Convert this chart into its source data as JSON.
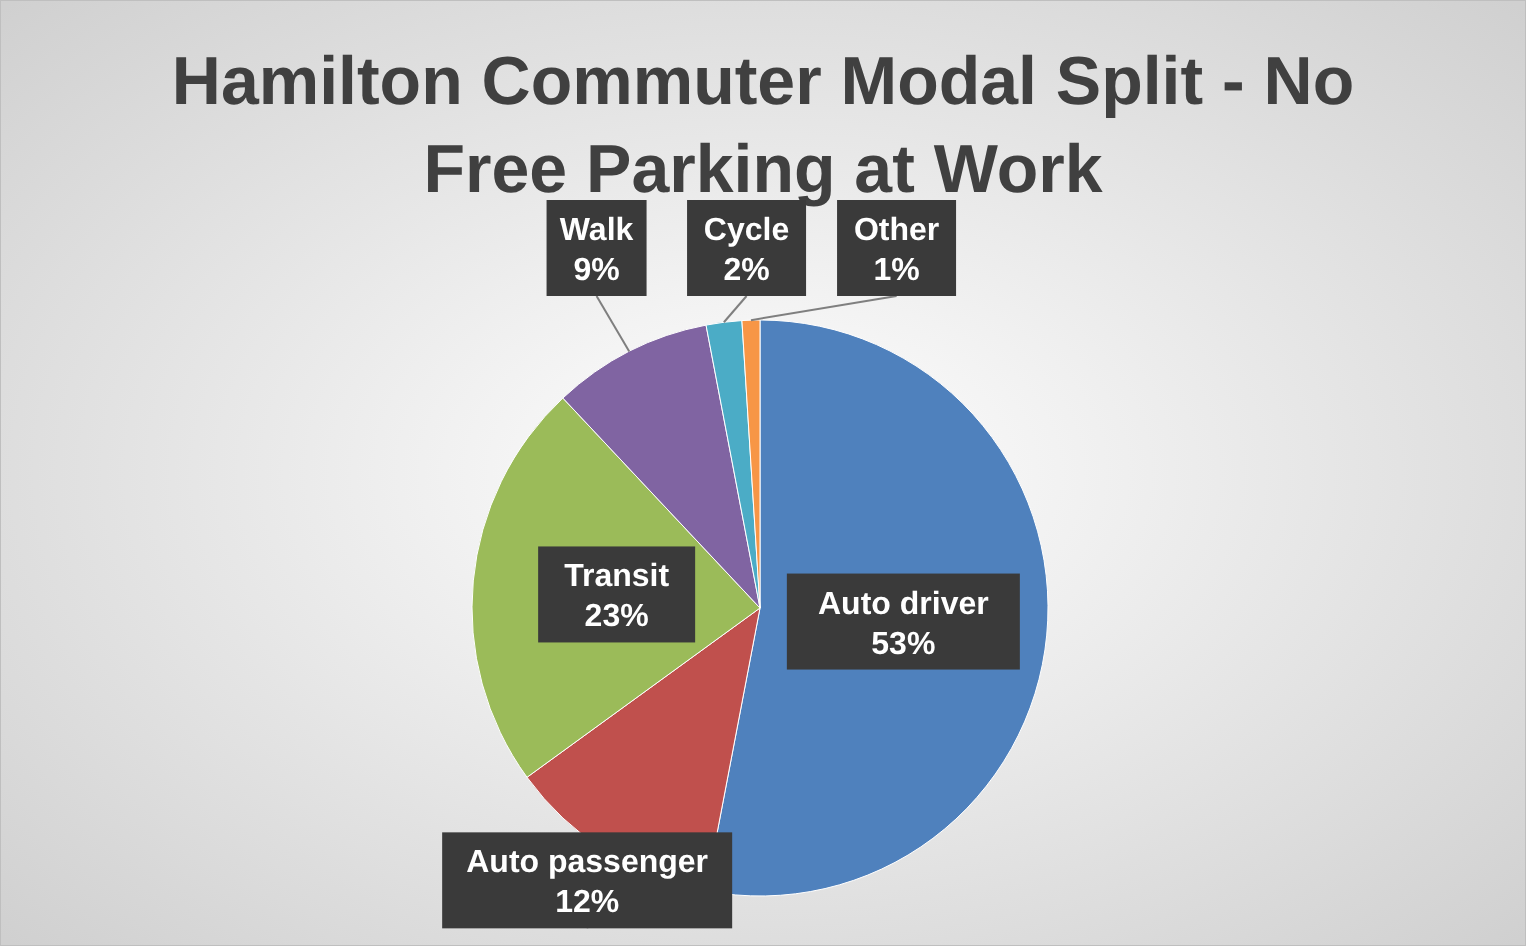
{
  "chart_data": {
    "type": "pie",
    "title": "Hamilton Commuter Modal Split - No Free Parking at Work",
    "categories": [
      "Auto driver",
      "Auto passenger",
      "Transit",
      "Walk",
      "Cycle",
      "Other"
    ],
    "values": [
      53,
      12,
      23,
      9,
      2,
      1
    ],
    "value_labels": [
      "53%",
      "12%",
      "23%",
      "9%",
      "2%",
      "1%"
    ],
    "colors": [
      "#4f81bd",
      "#c0504d",
      "#9bbb59",
      "#8064a2",
      "#4bacc6",
      "#f79646"
    ]
  }
}
